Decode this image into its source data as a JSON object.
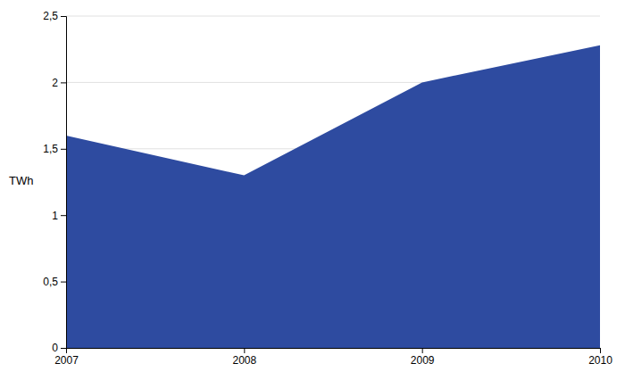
{
  "chart_data": {
    "type": "area",
    "ylabel": "TWh",
    "x": [
      2007,
      2008,
      2009,
      2010
    ],
    "values": [
      1.6,
      1.3,
      2.0,
      2.28
    ],
    "color": "#2E4BA0",
    "xlim": [
      2007,
      2010
    ],
    "xticks": [
      2007,
      2008,
      2009,
      2010
    ],
    "ylim": [
      0,
      2.5
    ],
    "yticks": [
      0,
      {
        "value": 0.5,
        "label": "0,5"
      },
      1,
      {
        "value": 1.5,
        "label": "1,5"
      },
      2,
      {
        "value": 2.5,
        "label": "2,5"
      }
    ],
    "grid": true
  }
}
